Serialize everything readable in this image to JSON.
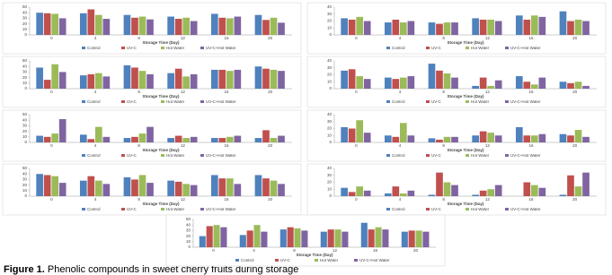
{
  "chart_data": [
    {
      "type": "bar",
      "x_label": "Storage Time (Day)",
      "categories": [
        "0",
        "4",
        "8",
        "12",
        "16",
        "20"
      ],
      "ylim": [
        0,
        50
      ],
      "yticks": [
        0,
        10,
        20,
        30,
        40,
        50
      ],
      "series": [
        {
          "name": "Control",
          "color": "#4f81bd",
          "values": [
            40,
            39,
            36,
            33,
            38,
            36
          ]
        },
        {
          "name": "UV-C",
          "color": "#c0504d",
          "values": [
            39,
            46,
            31,
            29,
            31,
            27
          ]
        },
        {
          "name": "Hot Water",
          "color": "#9bbb59",
          "values": [
            38,
            36,
            33,
            31,
            30,
            31
          ]
        },
        {
          "name": "UV-C+Hot Water",
          "color": "#8064a2",
          "values": [
            30,
            29,
            28,
            25,
            33,
            22
          ]
        }
      ]
    },
    {
      "type": "bar",
      "x_label": "Storage Time (Day)",
      "categories": [
        "0",
        "4",
        "8",
        "12",
        "16",
        "20"
      ],
      "ylim": [
        0,
        40
      ],
      "yticks": [
        0,
        10,
        20,
        30,
        40
      ],
      "series": [
        {
          "name": "Control",
          "color": "#4f81bd",
          "values": [
            24,
            18,
            18,
            24,
            28,
            34
          ]
        },
        {
          "name": "UV-C",
          "color": "#c0504d",
          "values": [
            22,
            22,
            16,
            22,
            22,
            20
          ]
        },
        {
          "name": "Hot Water",
          "color": "#9bbb59",
          "values": [
            26,
            18,
            18,
            22,
            28,
            22
          ]
        },
        {
          "name": "UV-C+Hot Water",
          "color": "#8064a2",
          "values": [
            20,
            20,
            18,
            20,
            26,
            20
          ]
        }
      ]
    },
    {
      "type": "bar",
      "x_label": "Storage Time (Day)",
      "categories": [
        "0",
        "4",
        "8",
        "12",
        "16",
        "20"
      ],
      "ylim": [
        0,
        50
      ],
      "yticks": [
        0,
        10,
        20,
        30,
        40,
        50
      ],
      "series": [
        {
          "name": "Control",
          "color": "#4f81bd",
          "values": [
            38,
            24,
            42,
            28,
            34,
            40
          ]
        },
        {
          "name": "UV-C",
          "color": "#c0504d",
          "values": [
            16,
            26,
            38,
            36,
            34,
            36
          ]
        },
        {
          "name": "Hot Water",
          "color": "#9bbb59",
          "values": [
            44,
            28,
            32,
            22,
            32,
            34
          ]
        },
        {
          "name": "UV-C+Hot Water",
          "color": "#8064a2",
          "values": [
            30,
            22,
            26,
            26,
            34,
            32
          ]
        }
      ]
    },
    {
      "type": "bar",
      "x_label": "Storage Time (Day)",
      "categories": [
        "0",
        "4",
        "8",
        "12",
        "16",
        "20"
      ],
      "ylim": [
        0,
        40
      ],
      "yticks": [
        0,
        10,
        20,
        30,
        40
      ],
      "series": [
        {
          "name": "Control",
          "color": "#4f81bd",
          "values": [
            26,
            16,
            36,
            4,
            18,
            10
          ]
        },
        {
          "name": "UV-C",
          "color": "#c0504d",
          "values": [
            28,
            14,
            26,
            16,
            10,
            8
          ]
        },
        {
          "name": "Hot Water",
          "color": "#9bbb59",
          "values": [
            18,
            16,
            22,
            4,
            6,
            10
          ]
        },
        {
          "name": "UV-C+Hot Water",
          "color": "#8064a2",
          "values": [
            14,
            18,
            16,
            12,
            16,
            4
          ]
        }
      ]
    },
    {
      "type": "bar",
      "x_label": "Storage Time (Day)",
      "categories": [
        "0",
        "4",
        "8",
        "12",
        "16",
        "20"
      ],
      "ylim": [
        0,
        50
      ],
      "yticks": [
        0,
        10,
        20,
        30,
        40,
        50
      ],
      "series": [
        {
          "name": "Control",
          "color": "#4f81bd",
          "values": [
            12,
            14,
            8,
            8,
            8,
            8
          ]
        },
        {
          "name": "UV-C",
          "color": "#c0504d",
          "values": [
            10,
            6,
            10,
            12,
            8,
            22
          ]
        },
        {
          "name": "Hot Water",
          "color": "#9bbb59",
          "values": [
            16,
            28,
            16,
            8,
            10,
            8
          ]
        },
        {
          "name": "UV-C+Hot Water",
          "color": "#8064a2",
          "values": [
            42,
            10,
            28,
            10,
            12,
            12
          ]
        }
      ]
    },
    {
      "type": "bar",
      "x_label": "Storage Time (Day)",
      "categories": [
        "0",
        "4",
        "8",
        "12",
        "16",
        "20"
      ],
      "ylim": [
        0,
        40
      ],
      "yticks": [
        0,
        10,
        20,
        30,
        40
      ],
      "series": [
        {
          "name": "Control",
          "color": "#4f81bd",
          "values": [
            22,
            10,
            6,
            10,
            22,
            12
          ]
        },
        {
          "name": "UV-C",
          "color": "#c0504d",
          "values": [
            20,
            8,
            4,
            16,
            10,
            10
          ]
        },
        {
          "name": "Hot Water",
          "color": "#9bbb59",
          "values": [
            32,
            28,
            8,
            14,
            10,
            18
          ]
        },
        {
          "name": "UV-C+Hot Water",
          "color": "#8064a2",
          "values": [
            14,
            10,
            8,
            10,
            12,
            8
          ]
        }
      ]
    },
    {
      "type": "bar",
      "x_label": "Storage Time (Day)",
      "categories": [
        "0",
        "4",
        "8",
        "12",
        "16",
        "20"
      ],
      "ylim": [
        0,
        50
      ],
      "yticks": [
        0,
        10,
        20,
        30,
        40,
        50
      ],
      "series": [
        {
          "name": "Control",
          "color": "#4f81bd",
          "values": [
            40,
            28,
            34,
            28,
            38,
            38
          ]
        },
        {
          "name": "UV-C",
          "color": "#c0504d",
          "values": [
            38,
            36,
            30,
            26,
            32,
            32
          ]
        },
        {
          "name": "Hot Water",
          "color": "#9bbb59",
          "values": [
            36,
            28,
            38,
            22,
            32,
            28
          ]
        },
        {
          "name": "UV-C+Hot Water",
          "color": "#8064a2",
          "values": [
            24,
            22,
            24,
            20,
            22,
            22
          ]
        }
      ]
    },
    {
      "type": "bar",
      "x_label": "Storage Time (Day)",
      "categories": [
        "0",
        "4",
        "8",
        "12",
        "16",
        "20"
      ],
      "ylim": [
        0,
        40
      ],
      "yticks": [
        0,
        10,
        20,
        30,
        40
      ],
      "series": [
        {
          "name": "Control",
          "color": "#4f81bd",
          "values": [
            12,
            4,
            2,
            2,
            0,
            2
          ]
        },
        {
          "name": "UV-C",
          "color": "#c0504d",
          "values": [
            6,
            14,
            34,
            8,
            20,
            30
          ]
        },
        {
          "name": "Hot Water",
          "color": "#9bbb59",
          "values": [
            14,
            4,
            20,
            10,
            16,
            14
          ]
        },
        {
          "name": "UV-C+Hot Water",
          "color": "#8064a2",
          "values": [
            8,
            8,
            16,
            16,
            12,
            34
          ]
        }
      ]
    },
    {
      "type": "bar",
      "x_label": "Storage Time (Day)",
      "categories": [
        "0",
        "4",
        "8",
        "12",
        "16",
        "20"
      ],
      "ylim": [
        0,
        50
      ],
      "yticks": [
        0,
        10,
        20,
        30,
        40,
        50
      ],
      "series": [
        {
          "name": "Control",
          "color": "#4f81bd",
          "values": [
            20,
            22,
            32,
            28,
            44,
            28
          ]
        },
        {
          "name": "UV-C",
          "color": "#c0504d",
          "values": [
            38,
            30,
            36,
            32,
            32,
            30
          ]
        },
        {
          "name": "Hot Water",
          "color": "#9bbb59",
          "values": [
            40,
            40,
            34,
            32,
            36,
            30
          ]
        },
        {
          "name": "UV-C+Hot Water",
          "color": "#8064a2",
          "values": [
            36,
            28,
            30,
            28,
            32,
            28
          ]
        }
      ]
    }
  ],
  "figure_caption": {
    "label": "Figure 1.",
    "text": "Phenolic compounds in sweet cherry fruits during storage"
  }
}
